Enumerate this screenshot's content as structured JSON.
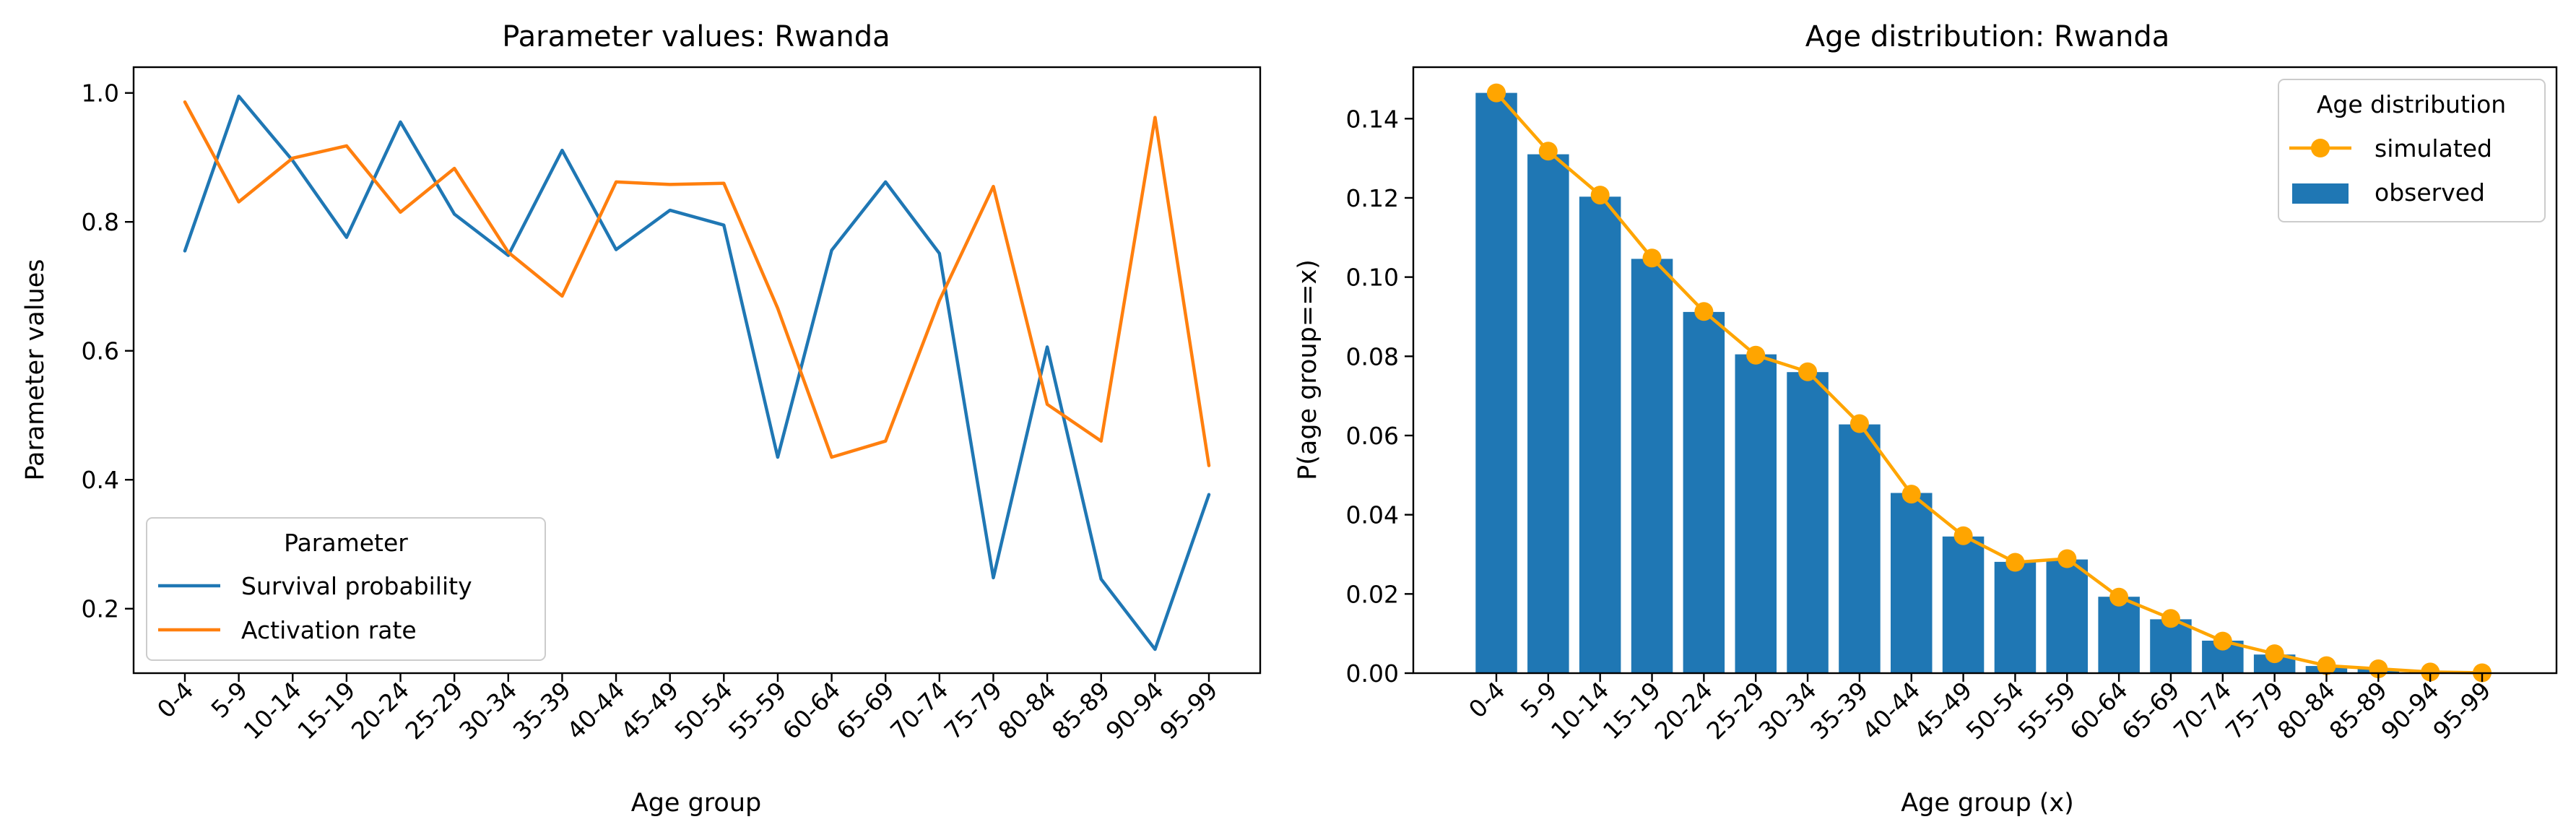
{
  "chart_data": [
    {
      "type": "line",
      "title": "Parameter values: Rwanda",
      "xlabel": "Age group",
      "ylabel": "Parameter values",
      "categories": [
        "0-4",
        "5-9",
        "10-14",
        "15-19",
        "20-24",
        "25-29",
        "30-34",
        "35-39",
        "40-44",
        "45-49",
        "50-54",
        "55-59",
        "60-64",
        "65-69",
        "70-74",
        "75-79",
        "80-84",
        "85-89",
        "90-94",
        "95-99"
      ],
      "ylim": [
        0.1,
        1.04
      ],
      "yticks": [
        0.2,
        0.4,
        0.6,
        0.8,
        1.0
      ],
      "ytick_labels": [
        "0.2",
        "0.4",
        "0.6",
        "0.8",
        "1.0"
      ],
      "grid": false,
      "legend": {
        "title": "Parameter",
        "placement": "lower-left"
      },
      "series": [
        {
          "name": "Survival probability",
          "color": "#1f77b4",
          "values": [
            0.755,
            0.995,
            0.895,
            0.776,
            0.955,
            0.812,
            0.748,
            0.911,
            0.757,
            0.818,
            0.795,
            0.435,
            0.756,
            0.862,
            0.751,
            0.248,
            0.606,
            0.246,
            0.137,
            0.377
          ]
        },
        {
          "name": "Activation rate",
          "color": "#ff7f0e",
          "values": [
            0.986,
            0.831,
            0.899,
            0.918,
            0.815,
            0.883,
            0.753,
            0.685,
            0.862,
            0.858,
            0.86,
            0.666,
            0.435,
            0.46,
            0.678,
            0.855,
            0.517,
            0.46,
            0.962,
            0.422
          ]
        }
      ]
    },
    {
      "type": "bar",
      "title": "Age distribution: Rwanda",
      "xlabel": "Age group (x)",
      "ylabel": "P(age group==x)",
      "categories": [
        "0-4",
        "5-9",
        "10-14",
        "15-19",
        "20-24",
        "25-29",
        "30-34",
        "35-39",
        "40-44",
        "45-49",
        "50-54",
        "55-59",
        "60-64",
        "65-69",
        "70-74",
        "75-79",
        "80-84",
        "85-89",
        "90-94",
        "95-99"
      ],
      "ylim": [
        0,
        0.153
      ],
      "yticks": [
        0.0,
        0.02,
        0.04,
        0.06,
        0.08,
        0.1,
        0.12,
        0.14
      ],
      "ytick_labels": [
        "0.00",
        "0.02",
        "0.04",
        "0.06",
        "0.08",
        "0.10",
        "0.12",
        "0.14"
      ],
      "grid": false,
      "legend": {
        "title": "Age distribution",
        "placement": "upper-right"
      },
      "series": [
        {
          "name": "simulated",
          "kind": "line-marker",
          "color": "#ffa500",
          "values": [
            0.1465,
            0.1318,
            0.1207,
            0.1048,
            0.0913,
            0.0803,
            0.0761,
            0.063,
            0.0452,
            0.0347,
            0.028,
            0.0289,
            0.0192,
            0.0138,
            0.0081,
            0.0049,
            0.0019,
            0.0011,
            0.0003,
            0.0001
          ]
        },
        {
          "name": "observed",
          "kind": "bar",
          "color": "#1f77b4",
          "values": [
            0.1465,
            0.131,
            0.1203,
            0.1046,
            0.0912,
            0.0805,
            0.076,
            0.0628,
            0.0455,
            0.0345,
            0.0281,
            0.0287,
            0.0193,
            0.0136,
            0.0082,
            0.0047,
            0.0018,
            0.001,
            0.0003,
            0.0001
          ]
        }
      ]
    }
  ]
}
